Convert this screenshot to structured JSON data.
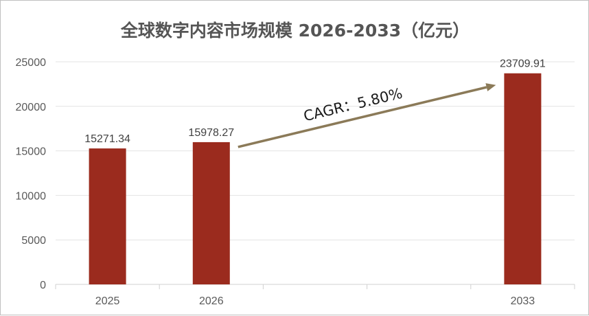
{
  "chart_data": {
    "type": "bar",
    "title": "全球数字内容市场规模 2026-2033（亿元）",
    "categories": [
      "2025",
      "2026",
      "",
      "",
      "2033"
    ],
    "values": [
      15271.34,
      15978.27,
      null,
      null,
      23709.91
    ],
    "value_labels": [
      "15271.34",
      "15978.27",
      "",
      "",
      "23709.91"
    ],
    "y_ticks": [
      "0",
      "5000",
      "10000",
      "15000",
      "20000",
      "25000"
    ],
    "ylim": [
      0,
      25000
    ],
    "grid": true,
    "bar_color": "#9b2b1e",
    "annotation": {
      "text": "CAGR：5.80%",
      "from_category": "2026",
      "to_category": "2033",
      "arrow_color": "#8b7a58"
    }
  }
}
